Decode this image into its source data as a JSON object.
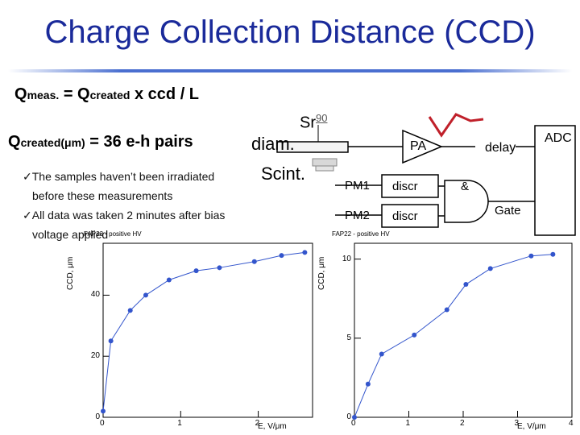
{
  "title": "Charge Collection Distance (CCD)",
  "formula1": {
    "q": "Q",
    "meas": "meas.",
    "mid": " = Q",
    "created": "created",
    "rest": " x ccd / L"
  },
  "formula2": {
    "q": "Q",
    "created": "created(μm)",
    "rest": " = 36 e-h pairs"
  },
  "bullets": [
    {
      "mark": "ü",
      "line1": "The samples haven’t been irradiated",
      "line2": "before these measurements"
    },
    {
      "mark": "ü",
      "line1": "All data was taken 2 minutes after bias",
      "line2": "voltage applied"
    }
  ],
  "schematic": {
    "source": "Sr",
    "source_mass": "90",
    "diam": "diam.",
    "scint": "Scint.",
    "pa": "PA",
    "delay": "delay",
    "adc": "ADC",
    "pm1": "PM1",
    "pm2": "PM2",
    "discr1": "discr",
    "discr2": "discr",
    "and": "&",
    "gate": "Gate"
  },
  "chart_data": [
    {
      "type": "line",
      "title": "FAP33 - positive HV",
      "xlabel": "E, V/μm",
      "ylabel": "CCD, μm",
      "xlim": [
        0,
        2.7
      ],
      "ylim": [
        0,
        57
      ],
      "xticks": [
        "0",
        "1",
        "2"
      ],
      "yticks": [
        "0",
        "20",
        "40"
      ],
      "x": [
        0.0,
        0.1,
        0.35,
        0.55,
        0.85,
        1.2,
        1.5,
        1.95,
        2.3,
        2.6
      ],
      "y": [
        2,
        25,
        35,
        40,
        45,
        48,
        49,
        51,
        53,
        54
      ],
      "color": "#3355cc"
    },
    {
      "type": "line",
      "title": "FAP22 - positive HV",
      "xlabel": "E, V/μm",
      "ylabel": "CCD, μm",
      "xlim": [
        0,
        4
      ],
      "ylim": [
        0,
        11
      ],
      "xticks": [
        "0",
        "1",
        "2",
        "3",
        "4"
      ],
      "yticks": [
        "0",
        "5",
        "10"
      ],
      "x": [
        0.0,
        0.25,
        0.5,
        1.1,
        1.7,
        2.05,
        2.5,
        3.25,
        3.65
      ],
      "y": [
        0,
        2.1,
        4,
        5.2,
        6.8,
        8.4,
        9.4,
        10.2,
        10.3
      ],
      "color": "#3355cc"
    }
  ]
}
